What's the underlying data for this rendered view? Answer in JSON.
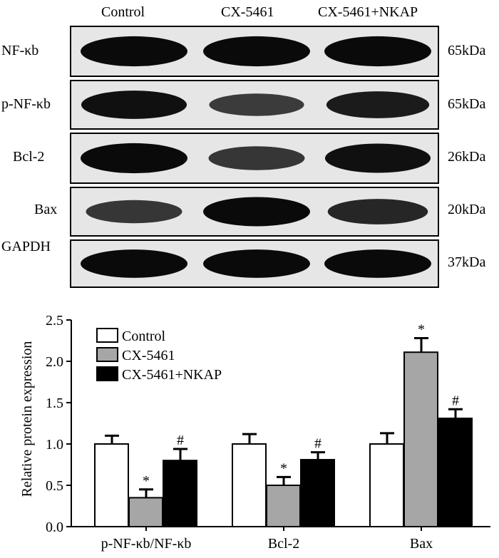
{
  "blot": {
    "lanes": [
      "Control",
      "CX-5461",
      "CX-5461+NKAP"
    ],
    "rows": [
      {
        "label": "NF-κb",
        "mw": "65kDa",
        "intensity": [
          1.0,
          1.0,
          1.0
        ]
      },
      {
        "label": "p-NF-κb",
        "mw": "65kDa",
        "intensity": [
          0.95,
          0.55,
          0.85
        ]
      },
      {
        "label": "Bcl-2",
        "mw": "26kDa",
        "intensity": [
          1.0,
          0.6,
          0.95
        ]
      },
      {
        "label": "Bax",
        "mw": "20kDa",
        "intensity": [
          0.6,
          1.0,
          0.75
        ]
      },
      {
        "label": "GAPDH",
        "mw": "37kDa",
        "intensity": [
          1.0,
          1.0,
          1.0
        ]
      }
    ]
  },
  "chart_data": {
    "type": "bar",
    "ylabel": "Relative protein expression",
    "ylim": [
      0,
      2.5
    ],
    "yticks": [
      "0.0",
      "0.5",
      "1.0",
      "1.5",
      "2.0",
      "2.5"
    ],
    "categories": [
      "p-NF-κb/NF-κb",
      "Bcl-2",
      "Bax"
    ],
    "legend_position": "top-left",
    "series": [
      {
        "name": "Control",
        "color": "#ffffff",
        "values": [
          1.0,
          1.0,
          1.0
        ],
        "errors": [
          0.1,
          0.12,
          0.13
        ],
        "marks": [
          "",
          "",
          ""
        ]
      },
      {
        "name": "CX-5461",
        "color": "#a6a6a6",
        "values": [
          0.35,
          0.5,
          2.11
        ],
        "errors": [
          0.1,
          0.1,
          0.17
        ],
        "marks": [
          "*",
          "*",
          "*"
        ]
      },
      {
        "name": "CX-5461+NKAP",
        "color": "#000000",
        "values": [
          0.8,
          0.81,
          1.31
        ],
        "errors": [
          0.14,
          0.09,
          0.11
        ],
        "marks": [
          "#",
          "#",
          "#"
        ]
      }
    ]
  }
}
